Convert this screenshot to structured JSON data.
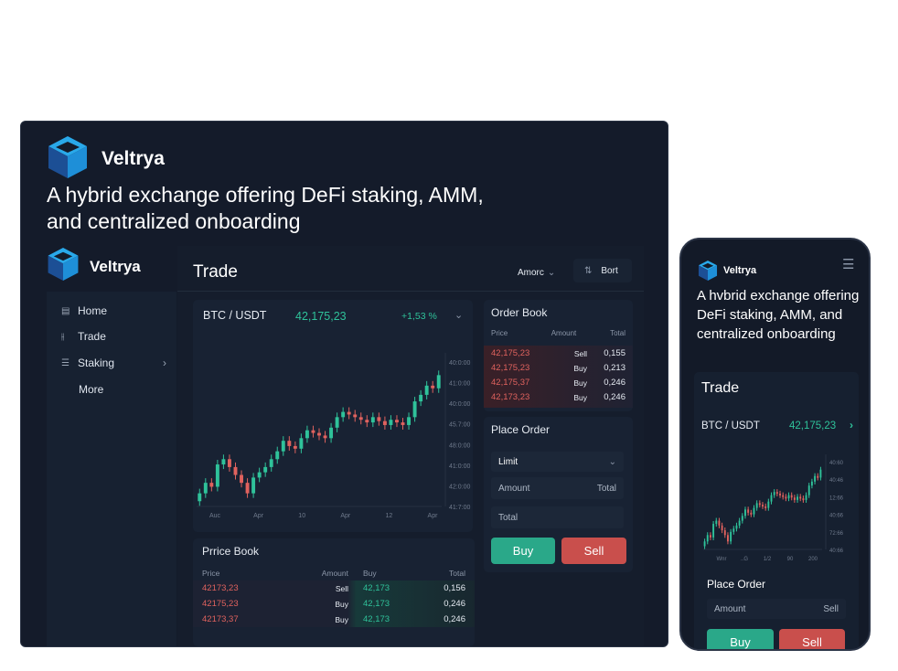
{
  "brand": {
    "name": "Veltrya",
    "headline_line1": "A hybrid exchange offering DeFi staking, AMM,",
    "headline_line2": "and centralized onboarding"
  },
  "colors": {
    "background": "#141b2a",
    "accent_green": "#2fc29a",
    "accent_red": "#e0625e",
    "brand_blue": "#1e9be0"
  },
  "sidebar": {
    "items": [
      {
        "label": "Home",
        "icon": "home-icon"
      },
      {
        "label": "Trade",
        "icon": "trade-icon"
      },
      {
        "label": "Staking",
        "icon": "staking-icon",
        "has_chevron": true
      },
      {
        "label": "More",
        "icon": ""
      }
    ]
  },
  "header": {
    "title": "Trade",
    "dropdown_label": "Amorc",
    "sort_label": "Bort"
  },
  "ticker": {
    "pair": "BTC / USDT",
    "price": "42,175,23",
    "change": "+1,53 %"
  },
  "order_book": {
    "title": "Order Book",
    "columns": [
      "Price",
      "Amount",
      "Total"
    ],
    "rows": [
      [
        "42,175,23",
        "Sell",
        "0,155"
      ],
      [
        "42,175,23",
        "Buy",
        "0,213"
      ],
      [
        "42,175,37",
        "Buy",
        "0,246"
      ],
      [
        "42,173,23",
        "Buy",
        "0,246"
      ]
    ]
  },
  "place_order": {
    "title": "Place Order",
    "type": "Limit",
    "amount_placeholder": "Amount",
    "total_placeholder": "Total",
    "total2_placeholder": "Total",
    "buy_label": "Buy",
    "sell_label": "Sell"
  },
  "price_book": {
    "title": "Prrice Book",
    "columns": [
      "Price",
      "Amount",
      "Buy",
      "Total"
    ],
    "rows": [
      [
        "42173,23",
        "Sell",
        "42,173",
        "0,156"
      ],
      [
        "42175,23",
        "Buy",
        "42,173",
        "0,246"
      ],
      [
        "42173,37",
        "Buy",
        "42,173",
        "0,246"
      ]
    ]
  },
  "mobile": {
    "brand": "Veltrya",
    "headline": "A hvbrid exchange offering DeFi staking, AMM, and centralized onboarding",
    "title": "Trade",
    "pair": "BTC / USDT",
    "price": "42,175,23",
    "place_order_title": "Place Order",
    "amount_placeholder": "Amount",
    "side_label": "Sell",
    "buy_label": "Buy",
    "sell_label": "Sell",
    "y_ticks": [
      "40:60",
      "40:46",
      "12:66",
      "40:66",
      "72:66",
      "40:66"
    ],
    "x_ticks": [
      "Wnr",
      "..G",
      "1/2",
      "90",
      "200"
    ]
  },
  "chart_data": {
    "type": "candlestick",
    "x_ticks": [
      "Auc",
      "Apr",
      "10",
      "Apr",
      "12",
      "Apr"
    ],
    "y_ticks": [
      "40:0:00",
      "41:0:00",
      "40:0:00",
      "45.7:00",
      "48:0:00",
      "41:0:00",
      "42:0:00",
      "41:7:00"
    ],
    "ylim": [
      41200,
      42300
    ],
    "closes": [
      41300,
      41380,
      41350,
      41520,
      41560,
      41500,
      41440,
      41380,
      41300,
      41420,
      41460,
      41500,
      41560,
      41620,
      41700,
      41660,
      41640,
      41720,
      41780,
      41760,
      41740,
      41720,
      41800,
      41880,
      41920,
      41900,
      41880,
      41860,
      41840,
      41880,
      41850,
      41820,
      41860,
      41840,
      41820,
      41880,
      42000,
      42050,
      42120,
      42100,
      42200
    ]
  }
}
